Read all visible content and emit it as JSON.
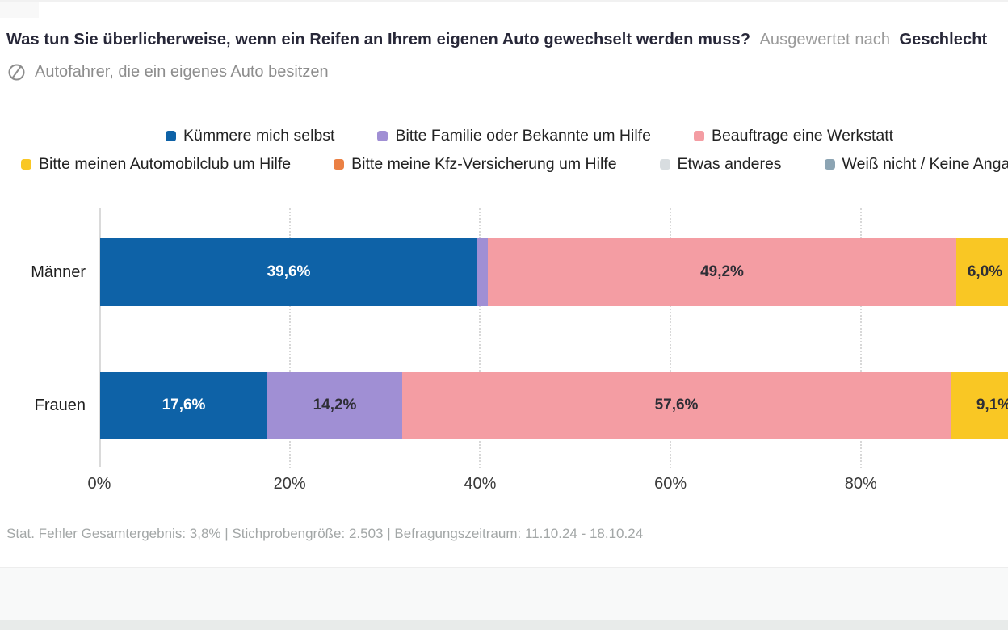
{
  "header": {
    "question": "Was tun Sie überlicherweise, wenn ein Reifen an Ihrem eigenen Auto gewechselt werden muss?",
    "analysis_prefix": "Ausgewertet nach",
    "analysis_dimension": "Geschlecht",
    "population": "Autofahrer, die ein eigenes Auto besitzen",
    "population_icon": "slashed-circle-icon"
  },
  "chart_data": {
    "type": "bar",
    "orientation": "horizontal",
    "stacked": true,
    "unit": "%",
    "grid": "dotted-vertical",
    "legend_position": "top",
    "categories": [
      "Männer",
      "Frauen"
    ],
    "series": [
      {
        "name": "Kümmere mich selbst",
        "color": "#0e62a7",
        "label_color": "#ffffff",
        "values": [
          39.6,
          17.6
        ],
        "value_labels": [
          "39,6%",
          "17,6%"
        ]
      },
      {
        "name": "Bitte Familie oder Bekannte um Hilfe",
        "color": "#a08fd4",
        "label_color": "#2e2e36",
        "values": [
          1.1,
          14.2
        ],
        "value_labels": [
          "",
          "14,2%"
        ]
      },
      {
        "name": "Beauftrage eine Werkstatt",
        "color": "#f49da3",
        "label_color": "#2e2e36",
        "values": [
          49.2,
          57.6
        ],
        "value_labels": [
          "49,2%",
          "57,6%"
        ]
      },
      {
        "name": "Bitte meinen Automobilclub um Hilfe",
        "color": "#f9c724",
        "label_color": "#2e2e36",
        "values": [
          6.0,
          9.1
        ],
        "value_labels": [
          "6,0%",
          "9,1%"
        ]
      },
      {
        "name": "Bitte meine Kfz-Versicherung um Hilfe",
        "color": "#eb8044",
        "label_color": "#2e2e36",
        "values": [
          null,
          null
        ],
        "value_labels": [
          "",
          ""
        ]
      },
      {
        "name": "Etwas anderes",
        "color": "#d8dde0",
        "label_color": "#2e2e36",
        "values": [
          null,
          null
        ],
        "value_labels": [
          "",
          ""
        ]
      },
      {
        "name": "Weiß nicht / Keine Angabe",
        "color": "#8ca4b3",
        "label_color": "#2e2e36",
        "values": [
          null,
          null
        ],
        "value_labels": [
          "",
          ""
        ]
      }
    ],
    "legend_rows": [
      [
        0,
        1,
        2
      ],
      [
        3,
        4,
        5,
        6
      ]
    ],
    "x_ticks": [
      {
        "label": "0%",
        "value": 0
      },
      {
        "label": "20%",
        "value": 20
      },
      {
        "label": "40%",
        "value": 40
      },
      {
        "label": "60%",
        "value": 60
      },
      {
        "label": "80%",
        "value": 80
      }
    ],
    "xlim": [
      0,
      100
    ]
  },
  "footer": {
    "note": "Stat. Fehler Gesamtergebnis: 3,8% | Stichprobengröße: 2.503 | Befragungszeitraum: 11.10.24 - 18.10.24"
  }
}
